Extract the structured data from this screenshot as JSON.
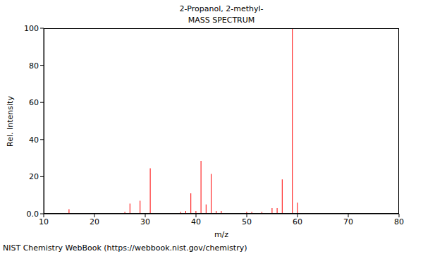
{
  "chart_data": {
    "type": "bar",
    "title": "2-Propanol, 2-methyl-",
    "subtitle": "MASS SPECTRUM",
    "x_label": "m/z",
    "y_label": "Rel. Intensity",
    "annotation": "NIST Chemistry WebBook (https://webbook.nist.gov/chemistry)",
    "x": [
      15,
      26,
      27,
      29,
      31,
      37,
      38,
      39,
      40,
      41,
      42,
      43,
      44,
      45,
      50,
      51,
      53,
      55,
      56,
      57,
      59,
      60
    ],
    "values": [
      2.5,
      1,
      5.5,
      7,
      24.5,
      1,
      1.5,
      11,
      1.5,
      28.5,
      5,
      21.5,
      1.5,
      1.5,
      1,
      1,
      1,
      3,
      3,
      18.5,
      100,
      6
    ],
    "color": "#ff0000",
    "xlim": [
      10,
      80
    ],
    "xticks": [
      10,
      20,
      30,
      40,
      50,
      60,
      70,
      80
    ],
    "ylim": [
      0,
      100
    ],
    "yticks": [
      {
        "value": 0,
        "label": "0.0"
      },
      20,
      40,
      60,
      80,
      100
    ],
    "grid": false
  }
}
